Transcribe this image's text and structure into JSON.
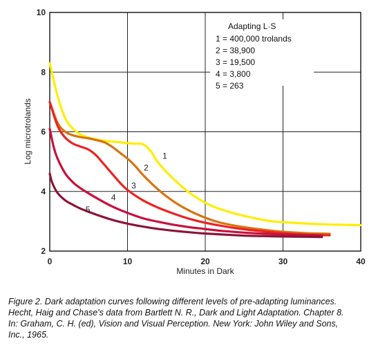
{
  "chart_data": {
    "type": "line",
    "title": "",
    "xlabel": "Minutes in Dark",
    "ylabel": "Log microtrolands",
    "xlim": [
      0,
      40
    ],
    "ylim": [
      2,
      10
    ],
    "x_ticks": [
      0,
      10,
      20,
      30,
      40
    ],
    "y_ticks": [
      2,
      4,
      6,
      8,
      10
    ],
    "grid": true,
    "legend": {
      "position": "top-right",
      "title": "Adapting L·S",
      "entries": [
        "1 = 400,000 trolands",
        "2 = 38,900",
        "3 = 19,500",
        "4 = 3,800",
        "5 = 263"
      ]
    },
    "series": [
      {
        "name": "1",
        "color": "#ffee00",
        "x": [
          0,
          1,
          2,
          3,
          4,
          5,
          7,
          9,
          10,
          11,
          12,
          13,
          14,
          16,
          18,
          20,
          22,
          25,
          28,
          30,
          35,
          40
        ],
        "y": [
          8.3,
          7.2,
          6.45,
          6.1,
          5.9,
          5.8,
          5.7,
          5.65,
          5.62,
          5.6,
          5.58,
          5.35,
          4.95,
          4.4,
          3.95,
          3.62,
          3.4,
          3.18,
          3.02,
          2.97,
          2.9,
          2.87
        ]
      },
      {
        "name": "2",
        "color": "#d9730d",
        "x": [
          0,
          1,
          2,
          3,
          4,
          5,
          6,
          7,
          8,
          9,
          10,
          11,
          12,
          14,
          16,
          18,
          20,
          22,
          25,
          28,
          30,
          33,
          36
        ],
        "y": [
          7.0,
          6.3,
          6.0,
          5.88,
          5.82,
          5.78,
          5.72,
          5.65,
          5.5,
          5.3,
          5.1,
          4.85,
          4.55,
          4.05,
          3.65,
          3.35,
          3.12,
          2.95,
          2.8,
          2.7,
          2.65,
          2.6,
          2.58
        ]
      },
      {
        "name": "3",
        "color": "#ee2222",
        "x": [
          0,
          1,
          2,
          3,
          4,
          5,
          6,
          7,
          8,
          9,
          10,
          12,
          14,
          16,
          18,
          20,
          22,
          25,
          28,
          30,
          33,
          36
        ],
        "y": [
          7.0,
          6.2,
          5.8,
          5.6,
          5.5,
          5.4,
          5.2,
          4.9,
          4.6,
          4.3,
          4.05,
          3.7,
          3.45,
          3.25,
          3.08,
          2.95,
          2.85,
          2.73,
          2.65,
          2.6,
          2.55,
          2.53
        ]
      },
      {
        "name": "4",
        "color": "#c8103c",
        "x": [
          0,
          0.5,
          1,
          2,
          3,
          4,
          6,
          8,
          10,
          12,
          14,
          16,
          18,
          20,
          22,
          25,
          28,
          30,
          33,
          35
        ],
        "y": [
          6.1,
          5.5,
          5.1,
          4.6,
          4.3,
          4.1,
          3.78,
          3.5,
          3.28,
          3.1,
          2.98,
          2.88,
          2.8,
          2.74,
          2.68,
          2.62,
          2.58,
          2.56,
          2.54,
          2.53
        ]
      },
      {
        "name": "5",
        "color": "#8b1538",
        "x": [
          0,
          0.3,
          1,
          2,
          3,
          4,
          6,
          8,
          10,
          12,
          14,
          16,
          18,
          20,
          22,
          25,
          28,
          30,
          33,
          35
        ],
        "y": [
          4.6,
          4.3,
          3.95,
          3.7,
          3.55,
          3.42,
          3.22,
          3.05,
          2.92,
          2.82,
          2.74,
          2.68,
          2.63,
          2.59,
          2.56,
          2.52,
          2.5,
          2.49,
          2.48,
          2.47
        ]
      }
    ],
    "curve_labels": [
      {
        "text": "1",
        "x": 14.8,
        "y": 5.1
      },
      {
        "text": "2",
        "x": 12.4,
        "y": 4.7
      },
      {
        "text": "3",
        "x": 10.8,
        "y": 4.1
      },
      {
        "text": "4",
        "x": 8.2,
        "y": 3.7
      },
      {
        "text": "5",
        "x": 4.9,
        "y": 3.3
      }
    ]
  },
  "caption": {
    "line1": "Figure 2. Dark adaptation curves following different levels of pre-adapting luminances.",
    "line2": "Hecht, Haig and Chase's data from Bartlett N. R., Dark and Light Adaptation. Chapter 8.",
    "line3": " In: Graham, C. H. (ed), Vision and Visual Perception. New York: John Wiley and Sons,",
    "line4": "Inc., 1965."
  }
}
